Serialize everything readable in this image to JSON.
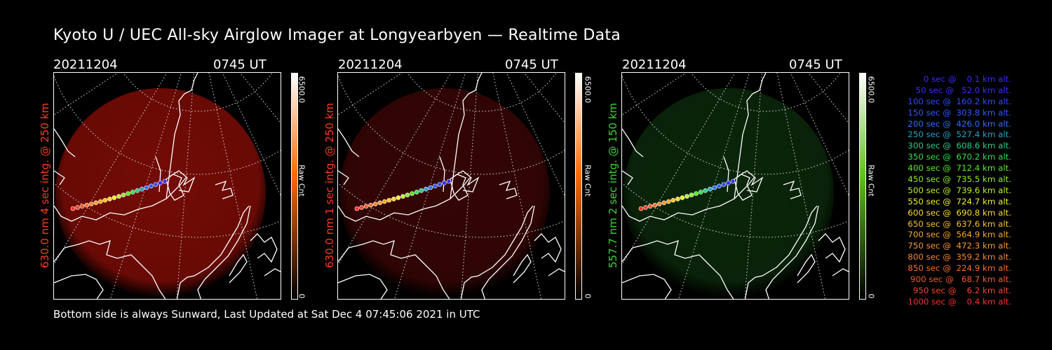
{
  "title": "Kyoto U / UEC All-sky Airglow Imager at Longyearbyen — Realtime Data",
  "footer": "Bottom side is always Sunward, Last Updated at Sat Dec  4 07:45:06 2021 in UTC",
  "panels": [
    {
      "date": "20211204",
      "time": "0745 UT",
      "ylabel": "630.0 nm 4 sec intg. @ 250 km",
      "label_color": "#ff3b1f",
      "colorbar_max": "6500.0",
      "colorbar_min": "0",
      "colorbar_label": "Raw Cnt",
      "glow_color": "#7a0c06",
      "glow_opacity": 0.95,
      "cbar_top": "#ffffff",
      "cbar_mid": "#ff6a00",
      "cbar_bottom": "#000000"
    },
    {
      "date": "20211204",
      "time": "0745 UT",
      "ylabel": "630.0 nm 1 sec intg. @ 250 km",
      "label_color": "#ff3b1f",
      "colorbar_max": "6500.0",
      "colorbar_min": "0",
      "colorbar_label": "Raw Cnt",
      "glow_color": "#3a0605",
      "glow_opacity": 0.9,
      "cbar_top": "#ffffff",
      "cbar_mid": "#ff6a00",
      "cbar_bottom": "#000000"
    },
    {
      "date": "20211204",
      "time": "0745 UT",
      "ylabel": "557.7 nm 2 sec intg. @ 150 km",
      "label_color": "#39d631",
      "colorbar_max": "6500.0",
      "colorbar_min": "0",
      "colorbar_label": "Raw Cnt",
      "glow_color": "#0b2a0b",
      "glow_opacity": 0.9,
      "cbar_top": "#ffffff",
      "cbar_mid": "#5ec21c",
      "cbar_bottom": "#000000"
    }
  ],
  "legend": [
    {
      "text": "   0 sec @    0.1 km alt.",
      "color": "#3b2dff"
    },
    {
      "text": "  50 sec @   52.0 km alt.",
      "color": "#3b2dff"
    },
    {
      "text": " 100 sec @  160.2 km alt.",
      "color": "#2a4dff"
    },
    {
      "text": " 150 sec @  303.8 km alt.",
      "color": "#2a5cff"
    },
    {
      "text": " 200 sec @  426.0 km alt.",
      "color": "#2a70ff"
    },
    {
      "text": " 250 sec @  527.4 km alt.",
      "color": "#2aa0c8"
    },
    {
      "text": " 300 sec @  608.6 km alt.",
      "color": "#2ad08a"
    },
    {
      "text": " 350 sec @  670.2 km alt.",
      "color": "#35e04a"
    },
    {
      "text": " 400 sec @  712.4 km alt.",
      "color": "#55ec2a"
    },
    {
      "text": " 450 sec @  735.5 km alt.",
      "color": "#8ef02a"
    },
    {
      "text": " 500 sec @  739.6 km alt.",
      "color": "#bff22a"
    },
    {
      "text": " 550 sec @  724.7 km alt.",
      "color": "#f0f02a"
    },
    {
      "text": " 600 sec @  690.8 km alt.",
      "color": "#f8dc2a"
    },
    {
      "text": " 650 sec @  637.6 km alt.",
      "color": "#f8c02a"
    },
    {
      "text": " 700 sec @  564.9 km alt.",
      "color": "#f8a82a"
    },
    {
      "text": " 750 sec @  472.3 km alt.",
      "color": "#f89a2a"
    },
    {
      "text": " 800 sec @  359.2 km alt.",
      "color": "#f8862a"
    },
    {
      "text": " 850 sec @  224.9 km alt.",
      "color": "#f8702a"
    },
    {
      "text": " 900 sec @   68.7 km alt.",
      "color": "#f85a2a"
    },
    {
      "text": " 950 sec @    6.2 km alt.",
      "color": "#f8442a"
    },
    {
      "text": "1000 sec @    0.4 km alt.",
      "color": "#f8302a"
    }
  ]
}
